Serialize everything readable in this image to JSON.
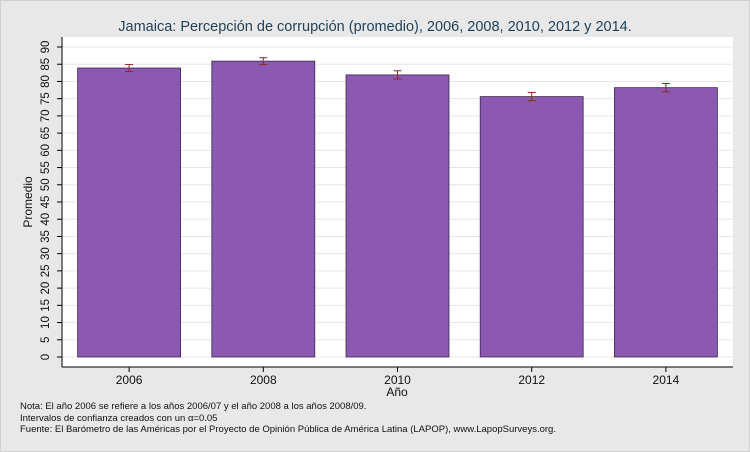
{
  "chart_data": {
    "type": "bar",
    "title": "Jamaica: Percepción de corrupción (promedio), 2006, 2008, 2010, 2012 y 2014.",
    "xlabel": "Año",
    "ylabel": "Promedio",
    "categories": [
      "2006",
      "2008",
      "2010",
      "2012",
      "2014"
    ],
    "series": [
      {
        "values": [
          83.9,
          85.9,
          81.9,
          75.6,
          78.2
        ],
        "error_low": [
          82.9,
          84.9,
          80.7,
          74.4,
          77.0
        ],
        "error_high": [
          84.9,
          86.9,
          83.1,
          76.8,
          79.4
        ],
        "color": "#8b58b2"
      }
    ],
    "ylim": [
      0,
      90
    ],
    "yticks": [
      "0",
      "5",
      "10",
      "15",
      "20",
      "25",
      "30",
      "35",
      "40",
      "45",
      "50",
      "55",
      "60",
      "65",
      "70",
      "75",
      "80",
      "85",
      "90"
    ],
    "grid": true,
    "error_bar_color": "#8b2a2a"
  },
  "notes": {
    "line1": "Nota: El año 2006 se refiere a los años 2006/07 y el año 2008 a los años 2008/09.",
    "line2": "Intervalos de confianza creados con un α=0.05",
    "line3": "Fuente: El Barómetro de las Américas por el Proyecto de Opinión Pública de América Latina (LAPOP), www.LapopSurveys.org."
  }
}
